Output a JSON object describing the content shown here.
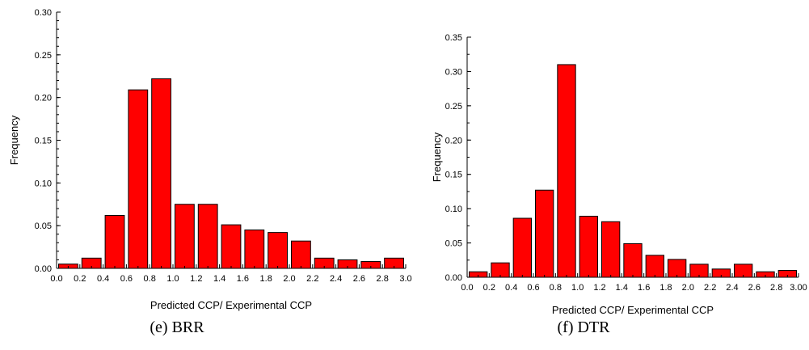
{
  "chart_data": [
    {
      "type": "bar",
      "caption": "(e) BRR",
      "xlabel": "Predicted CCP/ Experimental CCP",
      "ylabel": "Frequency",
      "xlim": [
        0.0,
        3.0
      ],
      "ylim": [
        0.0,
        0.3
      ],
      "xticks": [
        "0.0",
        "0.2",
        "0.4",
        "0.6",
        "0.8",
        "1.0",
        "1.2",
        "1.4",
        "1.6",
        "1.8",
        "2.0",
        "2.2",
        "2.4",
        "2.6",
        "2.8",
        "3.0"
      ],
      "yticks": [
        "0.00",
        "0.05",
        "0.10",
        "0.15",
        "0.20",
        "0.25",
        "0.30"
      ],
      "bin_edges": [
        0.0,
        0.2,
        0.4,
        0.6,
        0.8,
        1.0,
        1.2,
        1.4,
        1.6,
        1.8,
        2.0,
        2.2,
        2.4,
        2.6,
        2.8,
        3.0
      ],
      "values": [
        0.005,
        0.012,
        0.062,
        0.209,
        0.222,
        0.075,
        0.075,
        0.051,
        0.045,
        0.042,
        0.032,
        0.012,
        0.01,
        0.008,
        0.012
      ],
      "bar_color": "#ff0000"
    },
    {
      "type": "bar",
      "caption": "(f) DTR",
      "xlabel": "Predicted CCP/ Experimental CCP",
      "ylabel": "Frequency",
      "xlim": [
        0.0,
        3.0
      ],
      "ylim": [
        0.0,
        0.35
      ],
      "xticks": [
        "0.0",
        "0.2",
        "0.4",
        "0.6",
        "0.8",
        "1.0",
        "1.2",
        "1.4",
        "1.6",
        "1.8",
        "2.0",
        "2.2",
        "2.4",
        "2.6",
        "2.8",
        "3.00"
      ],
      "yticks": [
        "0.00",
        "0.05",
        "0.10",
        "0.15",
        "0.20",
        "0.25",
        "0.30",
        "0.35"
      ],
      "bin_edges": [
        0.0,
        0.2,
        0.4,
        0.6,
        0.8,
        1.0,
        1.2,
        1.4,
        1.6,
        1.8,
        2.0,
        2.2,
        2.4,
        2.6,
        2.8,
        3.0
      ],
      "values": [
        0.008,
        0.021,
        0.086,
        0.127,
        0.31,
        0.089,
        0.081,
        0.049,
        0.032,
        0.026,
        0.019,
        0.012,
        0.019,
        0.008,
        0.01
      ],
      "bar_color": "#ff0000"
    }
  ]
}
